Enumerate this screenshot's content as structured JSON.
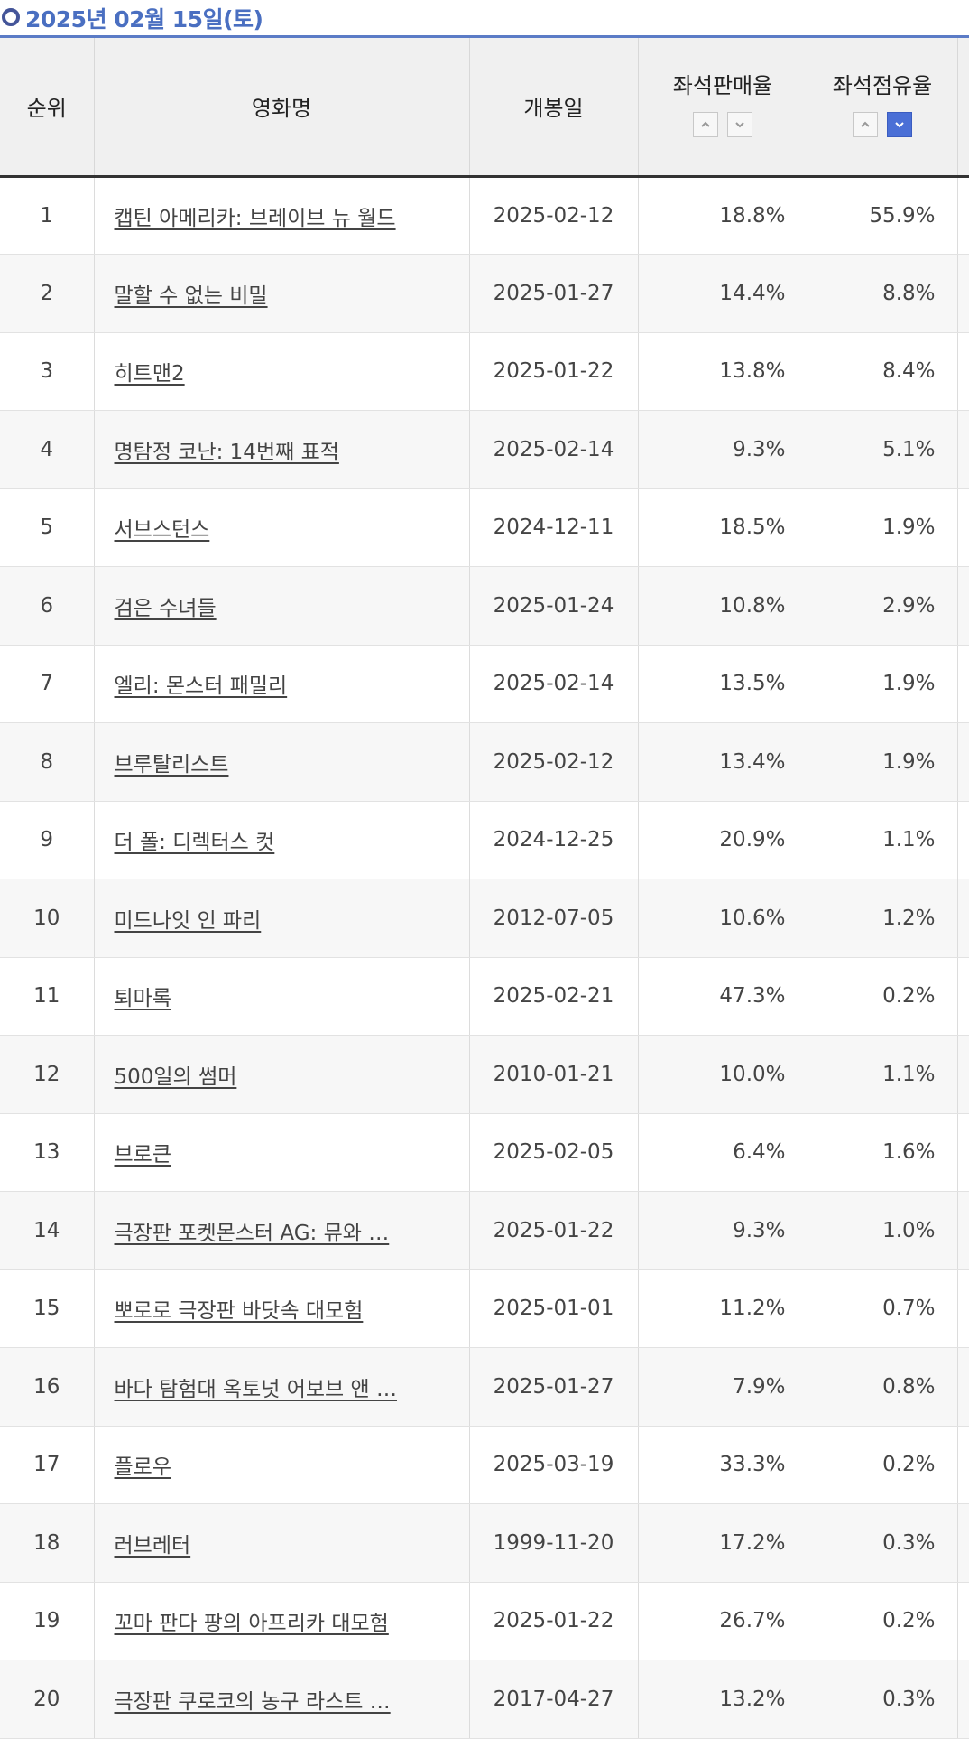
{
  "header": {
    "title": "2025년 02월 15일(토)"
  },
  "columns": {
    "rank": "순위",
    "name": "영화명",
    "date": "개봉일",
    "sale": "좌석판매율",
    "share": "좌석점유율"
  },
  "sort_icons": [
    "chevron-up-icon",
    "chevron-down-icon"
  ],
  "accent_color": "#4a6fd6",
  "rows": [
    {
      "rank": "1",
      "name": "캡틴 아메리카: 브레이브 뉴 월드",
      "date": "2025-02-12",
      "sale": "18.8%",
      "share": "55.9%"
    },
    {
      "rank": "2",
      "name": "말할 수 없는 비밀",
      "date": "2025-01-27",
      "sale": "14.4%",
      "share": "8.8%"
    },
    {
      "rank": "3",
      "name": "히트맨2",
      "date": "2025-01-22",
      "sale": "13.8%",
      "share": "8.4%"
    },
    {
      "rank": "4",
      "name": "명탐정 코난: 14번째 표적",
      "date": "2025-02-14",
      "sale": "9.3%",
      "share": "5.1%"
    },
    {
      "rank": "5",
      "name": "서브스턴스",
      "date": "2024-12-11",
      "sale": "18.5%",
      "share": "1.9%"
    },
    {
      "rank": "6",
      "name": "검은 수녀들",
      "date": "2025-01-24",
      "sale": "10.8%",
      "share": "2.9%"
    },
    {
      "rank": "7",
      "name": "엘리: 몬스터 패밀리",
      "date": "2025-02-14",
      "sale": "13.5%",
      "share": "1.9%"
    },
    {
      "rank": "8",
      "name": "브루탈리스트",
      "date": "2025-02-12",
      "sale": "13.4%",
      "share": "1.9%"
    },
    {
      "rank": "9",
      "name": "더 폴: 디렉터스 컷",
      "date": "2024-12-25",
      "sale": "20.9%",
      "share": "1.1%"
    },
    {
      "rank": "10",
      "name": "미드나잇 인 파리",
      "date": "2012-07-05",
      "sale": "10.6%",
      "share": "1.2%"
    },
    {
      "rank": "11",
      "name": "퇴마록",
      "date": "2025-02-21",
      "sale": "47.3%",
      "share": "0.2%"
    },
    {
      "rank": "12",
      "name": "500일의 썸머",
      "date": "2010-01-21",
      "sale": "10.0%",
      "share": "1.1%"
    },
    {
      "rank": "13",
      "name": "브로큰",
      "date": "2025-02-05",
      "sale": "6.4%",
      "share": "1.6%"
    },
    {
      "rank": "14",
      "name": "극장판 포켓몬스터 AG: 뮤와 …",
      "date": "2025-01-22",
      "sale": "9.3%",
      "share": "1.0%"
    },
    {
      "rank": "15",
      "name": "뽀로로 극장판 바닷속 대모험",
      "date": "2025-01-01",
      "sale": "11.2%",
      "share": "0.7%"
    },
    {
      "rank": "16",
      "name": "바다 탐험대 옥토넛 어보브 앤 …",
      "date": "2025-01-27",
      "sale": "7.9%",
      "share": "0.8%"
    },
    {
      "rank": "17",
      "name": "플로우",
      "date": "2025-03-19",
      "sale": "33.3%",
      "share": "0.2%"
    },
    {
      "rank": "18",
      "name": "러브레터",
      "date": "1999-11-20",
      "sale": "17.2%",
      "share": "0.3%"
    },
    {
      "rank": "19",
      "name": "꼬마 판다 팡의 아프리카 대모험",
      "date": "2025-01-22",
      "sale": "26.7%",
      "share": "0.2%"
    },
    {
      "rank": "20",
      "name": "극장판 쿠로코의 농구 라스트 …",
      "date": "2017-04-27",
      "sale": "13.2%",
      "share": "0.3%"
    }
  ]
}
